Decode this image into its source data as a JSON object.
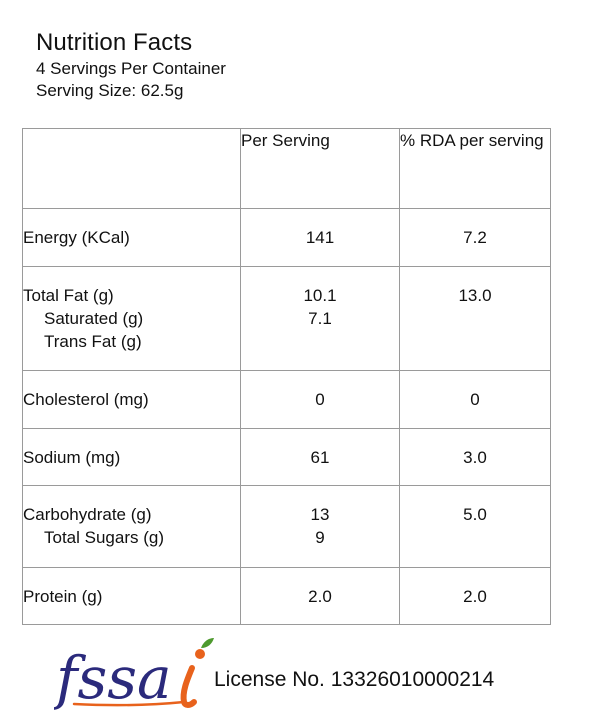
{
  "header": {
    "title": "Nutrition Facts",
    "servings": "4 Servings Per Container",
    "serving_size": "Serving Size: 62.5g"
  },
  "table": {
    "columns": [
      "",
      "Per Serving",
      "% RDA per serving"
    ],
    "rows": [
      {
        "name": "Energy (KCal)",
        "per_serving": "141",
        "rda": "7.2"
      },
      {
        "name": "Total Fat (g)",
        "per_serving": "10.1",
        "rda": "13.0",
        "sub": [
          {
            "name": "Saturated (g)",
            "per_serving": "7.1"
          },
          {
            "name": "Trans Fat (g)",
            "per_serving": ""
          }
        ]
      },
      {
        "name": "Cholesterol (mg)",
        "per_serving": "0",
        "rda": "0"
      },
      {
        "name": "Sodium (mg)",
        "per_serving": "61",
        "rda": "3.0"
      },
      {
        "name": "Carbohydrate (g)",
        "per_serving": "13",
        "rda": "5.0",
        "sub": [
          {
            "name": "Total Sugars (g)",
            "per_serving": "9"
          }
        ]
      },
      {
        "name": "Protein (g)",
        "per_serving": "2.0",
        "rda": "2.0"
      }
    ]
  },
  "footer": {
    "logo_text": "fssai",
    "license": "License No. 13326010000214"
  },
  "colors": {
    "border": "#9a9a9a",
    "logo_blue": "#2b2a7c",
    "logo_orange": "#e8621c",
    "logo_green": "#4e9a2e"
  }
}
